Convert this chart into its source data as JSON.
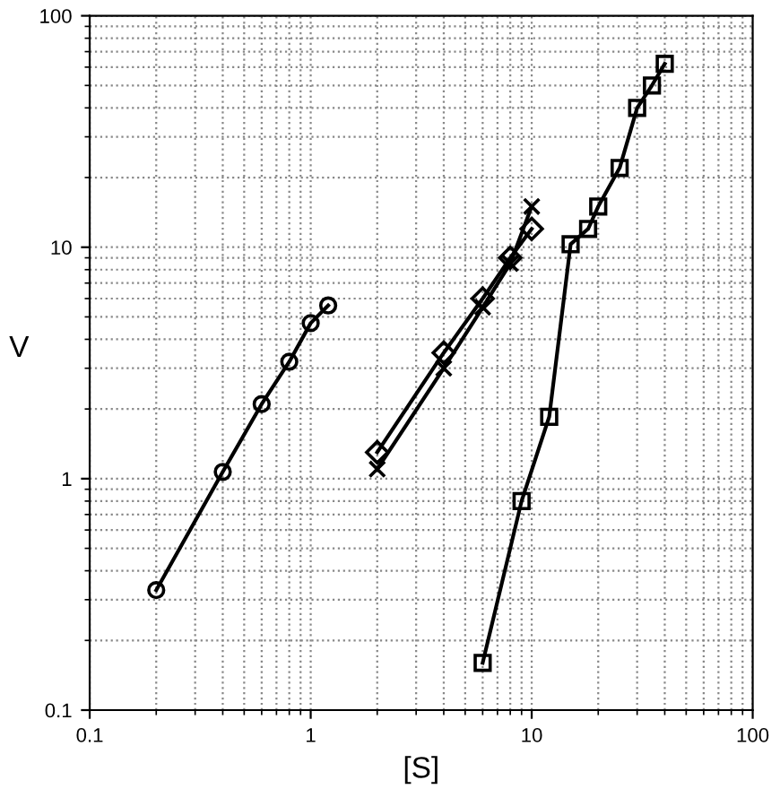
{
  "chart_data": {
    "type": "line",
    "xlabel": "[S]",
    "ylabel": "V",
    "log": "xy",
    "grid": true,
    "xlim": [
      0.1,
      100
    ],
    "ylim": [
      0.1,
      100
    ],
    "xticks": [
      0.1,
      1,
      10,
      100
    ],
    "yticks": [
      0.1,
      1,
      10,
      100
    ],
    "series": [
      {
        "color": "#000000",
        "marker": "circle",
        "x": [
          0.2,
          0.4,
          0.6,
          0.8,
          1.0,
          1.2
        ],
        "values": [
          0.33,
          1.07,
          2.1,
          3.2,
          4.7,
          5.6
        ]
      },
      {
        "color": "#000000",
        "marker": "diamond",
        "x": [
          2,
          4,
          6,
          8,
          10
        ],
        "values": [
          1.3,
          3.5,
          6,
          9,
          12
        ]
      },
      {
        "color": "#000000",
        "marker": "cross",
        "x": [
          2,
          4,
          6,
          8,
          10
        ],
        "values": [
          1.1,
          3.0,
          5.5,
          8.5,
          15
        ]
      },
      {
        "color": "#000000",
        "marker": "square",
        "x": [
          6,
          9,
          12,
          15,
          18,
          20,
          25,
          30,
          35,
          40
        ],
        "values": [
          0.16,
          0.8,
          1.85,
          10.3,
          12,
          15,
          22,
          40,
          50,
          62
        ]
      }
    ]
  }
}
